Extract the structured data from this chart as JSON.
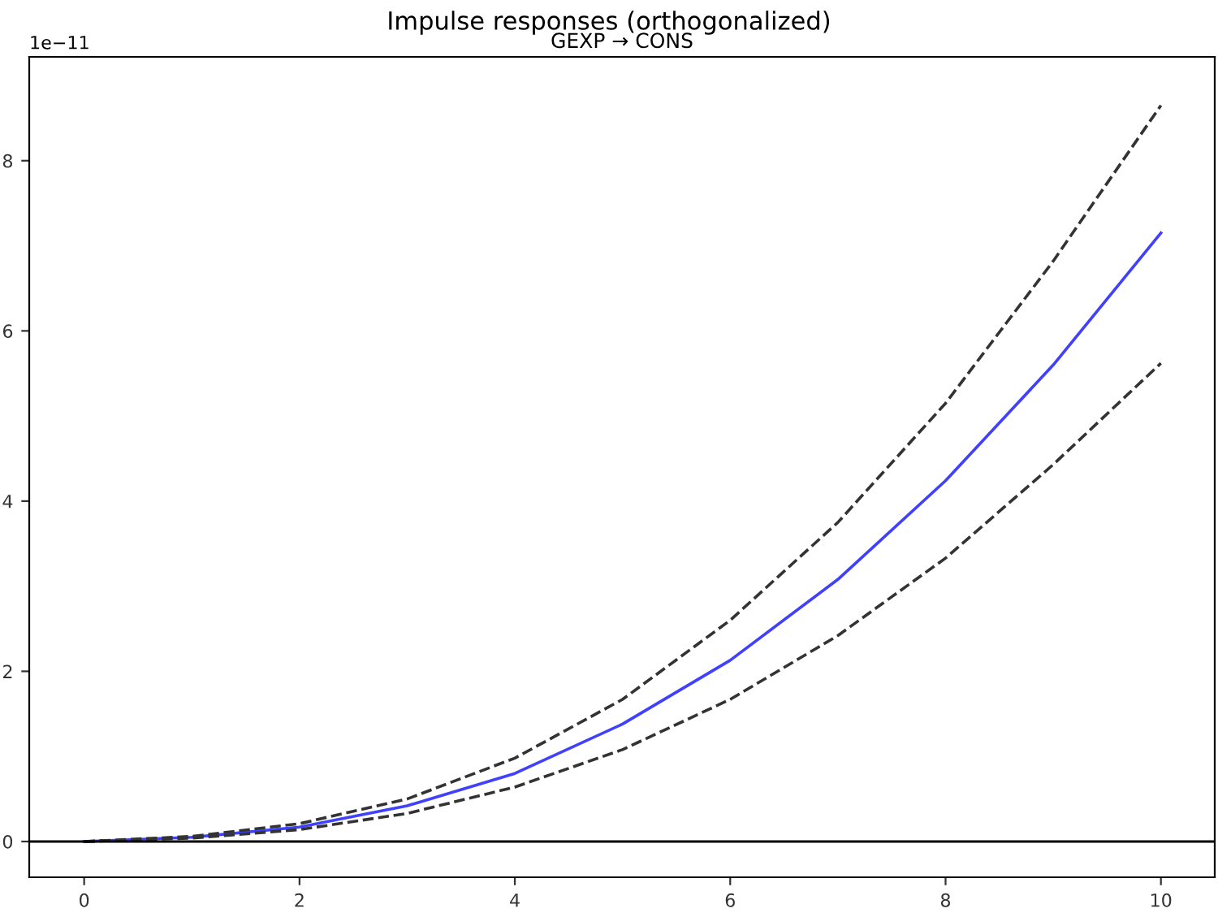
{
  "chart_data": {
    "type": "line",
    "title": "Impulse responses (orthogonalized)",
    "subtitle": "GEXP → CONS",
    "x": [
      0,
      1,
      2,
      3,
      4,
      5,
      6,
      7,
      8,
      9,
      10
    ],
    "series": [
      {
        "color": "#4040ff",
        "line_style": "solid",
        "values": [
          0,
          0.05,
          0.17,
          0.42,
          0.8,
          1.38,
          2.13,
          3.08,
          4.24,
          5.6,
          7.15
        ]
      },
      {
        "color": "#333333",
        "line_style": "dashed",
        "values": [
          0,
          0.06,
          0.21,
          0.5,
          0.98,
          1.67,
          2.6,
          3.75,
          5.15,
          6.82,
          8.65
        ]
      },
      {
        "color": "#333333",
        "line_style": "dashed",
        "values": [
          0,
          0.04,
          0.14,
          0.33,
          0.64,
          1.08,
          1.67,
          2.42,
          3.33,
          4.43,
          5.62
        ]
      }
    ],
    "xlim": [
      -0.51,
      10.5
    ],
    "xticks": [
      0,
      2,
      4,
      6,
      8,
      10
    ],
    "ylim": [
      -0.42,
      9.22
    ],
    "yticks": [
      0,
      2,
      4,
      6,
      8
    ],
    "annotations": [
      "1e−11"
    ],
    "ref_lines": [
      {
        "axis": "y",
        "value": 0,
        "color": "#000000"
      }
    ],
    "grid": false,
    "legend": false
  }
}
